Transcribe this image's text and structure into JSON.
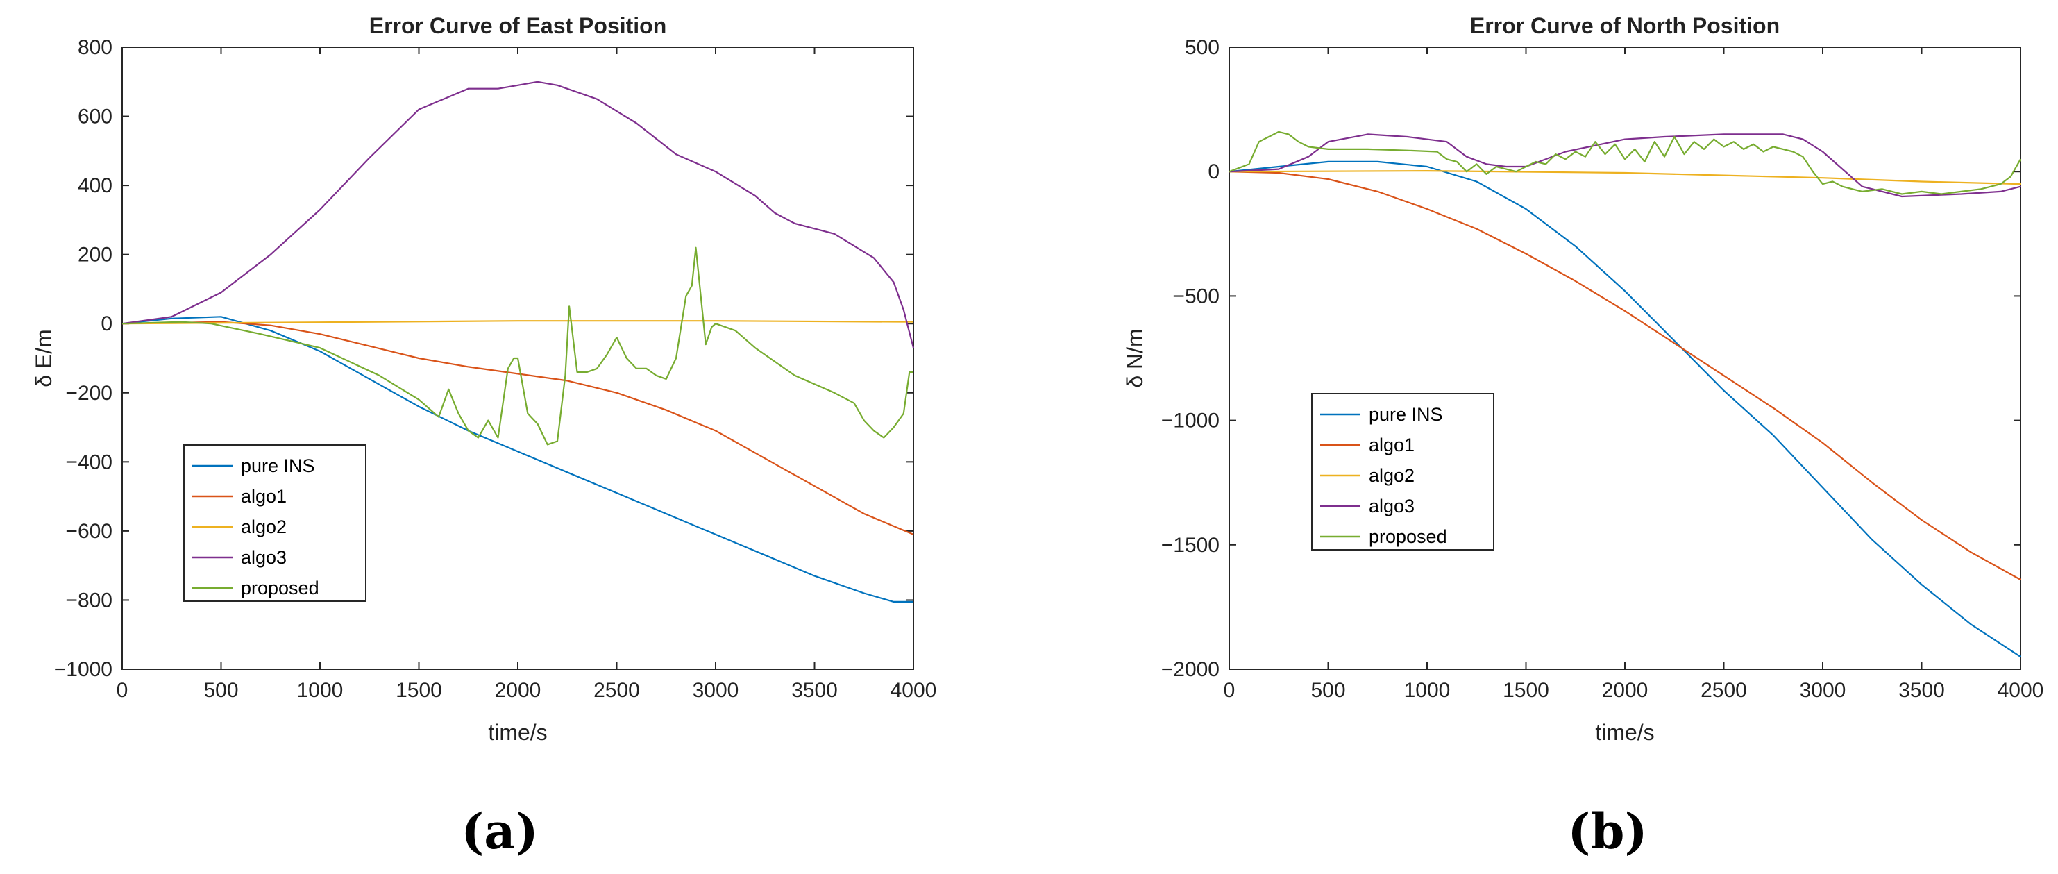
{
  "chart_data": [
    {
      "type": "line",
      "panel_label": "(a)",
      "title": "Error Curve of East Position",
      "xlabel": "time/s",
      "ylabel": "δ E/m",
      "xlim": [
        0,
        4000
      ],
      "ylim": [
        -1000,
        800
      ],
      "xticks": [
        0,
        500,
        1000,
        1500,
        2000,
        2500,
        3000,
        3500,
        4000
      ],
      "yticks": [
        -1000,
        -800,
        -600,
        -400,
        -200,
        0,
        200,
        400,
        600,
        800
      ],
      "legend_position": "lower-left",
      "series": [
        {
          "name": "pure INS",
          "color": "#0072BD",
          "x": [
            0,
            250,
            500,
            750,
            1000,
            1250,
            1500,
            1750,
            2000,
            2250,
            2500,
            2750,
            3000,
            3250,
            3500,
            3750,
            3900,
            4000
          ],
          "y": [
            0,
            15,
            20,
            -20,
            -80,
            -160,
            -240,
            -310,
            -370,
            -430,
            -490,
            -550,
            -610,
            -670,
            -730,
            -780,
            -805,
            -805
          ]
        },
        {
          "name": "algo1",
          "color": "#D95319",
          "x": [
            0,
            500,
            750,
            1000,
            1250,
            1500,
            1750,
            2000,
            2250,
            2500,
            2750,
            3000,
            3250,
            3500,
            3750,
            4000
          ],
          "y": [
            0,
            5,
            -5,
            -30,
            -65,
            -100,
            -125,
            -145,
            -165,
            -200,
            -250,
            -310,
            -390,
            -470,
            -550,
            -610
          ]
        },
        {
          "name": "algo2",
          "color": "#EDB120",
          "x": [
            0,
            1000,
            2000,
            3000,
            4000
          ],
          "y": [
            0,
            4,
            8,
            8,
            5
          ]
        },
        {
          "name": "algo3",
          "color": "#7E2F8E",
          "x": [
            0,
            250,
            500,
            750,
            1000,
            1250,
            1500,
            1750,
            1900,
            2000,
            2100,
            2200,
            2400,
            2600,
            2800,
            3000,
            3200,
            3300,
            3400,
            3600,
            3800,
            3900,
            3950,
            4000
          ],
          "y": [
            0,
            20,
            90,
            200,
            330,
            480,
            620,
            680,
            680,
            690,
            700,
            690,
            650,
            580,
            490,
            440,
            370,
            320,
            290,
            260,
            190,
            120,
            40,
            -70
          ]
        },
        {
          "name": "proposed",
          "color": "#77AC30",
          "x": [
            0,
            300,
            450,
            700,
            1000,
            1300,
            1500,
            1600,
            1650,
            1700,
            1750,
            1800,
            1850,
            1900,
            1950,
            1980,
            2000,
            2050,
            2100,
            2150,
            2200,
            2240,
            2260,
            2300,
            2350,
            2400,
            2450,
            2500,
            2550,
            2600,
            2650,
            2700,
            2750,
            2800,
            2850,
            2880,
            2900,
            2950,
            2980,
            3000,
            3050,
            3100,
            3200,
            3400,
            3600,
            3700,
            3750,
            3800,
            3850,
            3900,
            3950,
            3980,
            4000
          ],
          "y": [
            0,
            5,
            0,
            -30,
            -70,
            -150,
            -220,
            -270,
            -190,
            -260,
            -310,
            -330,
            -280,
            -330,
            -130,
            -100,
            -100,
            -260,
            -290,
            -350,
            -340,
            -150,
            50,
            -140,
            -140,
            -130,
            -90,
            -40,
            -100,
            -130,
            -130,
            -150,
            -160,
            -100,
            80,
            110,
            220,
            -60,
            -10,
            0,
            -10,
            -20,
            -70,
            -150,
            -200,
            -230,
            -280,
            -310,
            -330,
            -300,
            -260,
            -140,
            -140
          ]
        }
      ]
    },
    {
      "type": "line",
      "panel_label": "(b)",
      "title": "Error Curve of North Position",
      "xlabel": "time/s",
      "ylabel": "δ N/m",
      "xlim": [
        0,
        4000
      ],
      "ylim": [
        -2000,
        500
      ],
      "xticks": [
        0,
        500,
        1000,
        1500,
        2000,
        2500,
        3000,
        3500,
        4000
      ],
      "yticks": [
        -2000,
        -1500,
        -1000,
        -500,
        0,
        500
      ],
      "legend_position": "center-left",
      "series": [
        {
          "name": "pure INS",
          "color": "#0072BD",
          "x": [
            0,
            250,
            500,
            750,
            1000,
            1250,
            1500,
            1750,
            2000,
            2250,
            2500,
            2750,
            3000,
            3250,
            3500,
            3750,
            4000
          ],
          "y": [
            0,
            20,
            40,
            40,
            20,
            -40,
            -150,
            -300,
            -480,
            -680,
            -880,
            -1060,
            -1270,
            -1480,
            -1660,
            -1820,
            -1950
          ]
        },
        {
          "name": "algo1",
          "color": "#D95319",
          "x": [
            0,
            250,
            500,
            750,
            1000,
            1250,
            1500,
            1750,
            2000,
            2250,
            2500,
            2750,
            3000,
            3250,
            3500,
            3750,
            4000
          ],
          "y": [
            0,
            -5,
            -30,
            -80,
            -150,
            -230,
            -330,
            -440,
            -560,
            -690,
            -820,
            -950,
            -1090,
            -1250,
            -1400,
            -1530,
            -1640
          ]
        },
        {
          "name": "algo2",
          "color": "#EDB120",
          "x": [
            0,
            1000,
            2000,
            2500,
            3000,
            3500,
            4000
          ],
          "y": [
            0,
            3,
            -5,
            -15,
            -25,
            -40,
            -50
          ]
        },
        {
          "name": "algo3",
          "color": "#7E2F8E",
          "x": [
            0,
            250,
            400,
            500,
            700,
            900,
            1100,
            1200,
            1300,
            1400,
            1500,
            1700,
            2000,
            2200,
            2500,
            2800,
            2900,
            3000,
            3200,
            3400,
            3700,
            3900,
            4000
          ],
          "y": [
            0,
            10,
            60,
            120,
            150,
            140,
            120,
            60,
            30,
            20,
            20,
            80,
            130,
            140,
            150,
            150,
            130,
            80,
            -60,
            -100,
            -90,
            -80,
            -60
          ]
        },
        {
          "name": "proposed",
          "color": "#77AC30",
          "x": [
            0,
            100,
            150,
            200,
            250,
            300,
            350,
            400,
            500,
            700,
            900,
            1050,
            1100,
            1150,
            1200,
            1250,
            1300,
            1350,
            1400,
            1450,
            1500,
            1550,
            1600,
            1650,
            1700,
            1750,
            1800,
            1850,
            1900,
            1950,
            2000,
            2050,
            2100,
            2150,
            2200,
            2250,
            2300,
            2350,
            2400,
            2450,
            2500,
            2550,
            2600,
            2650,
            2700,
            2750,
            2800,
            2850,
            2900,
            2950,
            3000,
            3050,
            3100,
            3200,
            3300,
            3400,
            3500,
            3600,
            3700,
            3800,
            3900,
            3950,
            4000
          ],
          "y": [
            0,
            30,
            120,
            140,
            160,
            150,
            120,
            100,
            90,
            90,
            85,
            80,
            50,
            40,
            0,
            30,
            -10,
            20,
            10,
            0,
            20,
            40,
            30,
            70,
            50,
            80,
            60,
            120,
            70,
            110,
            50,
            90,
            40,
            120,
            60,
            140,
            70,
            120,
            90,
            130,
            100,
            120,
            90,
            110,
            80,
            100,
            90,
            80,
            60,
            0,
            -50,
            -40,
            -60,
            -80,
            -70,
            -90,
            -80,
            -90,
            -80,
            -70,
            -50,
            -20,
            50
          ]
        }
      ]
    }
  ]
}
